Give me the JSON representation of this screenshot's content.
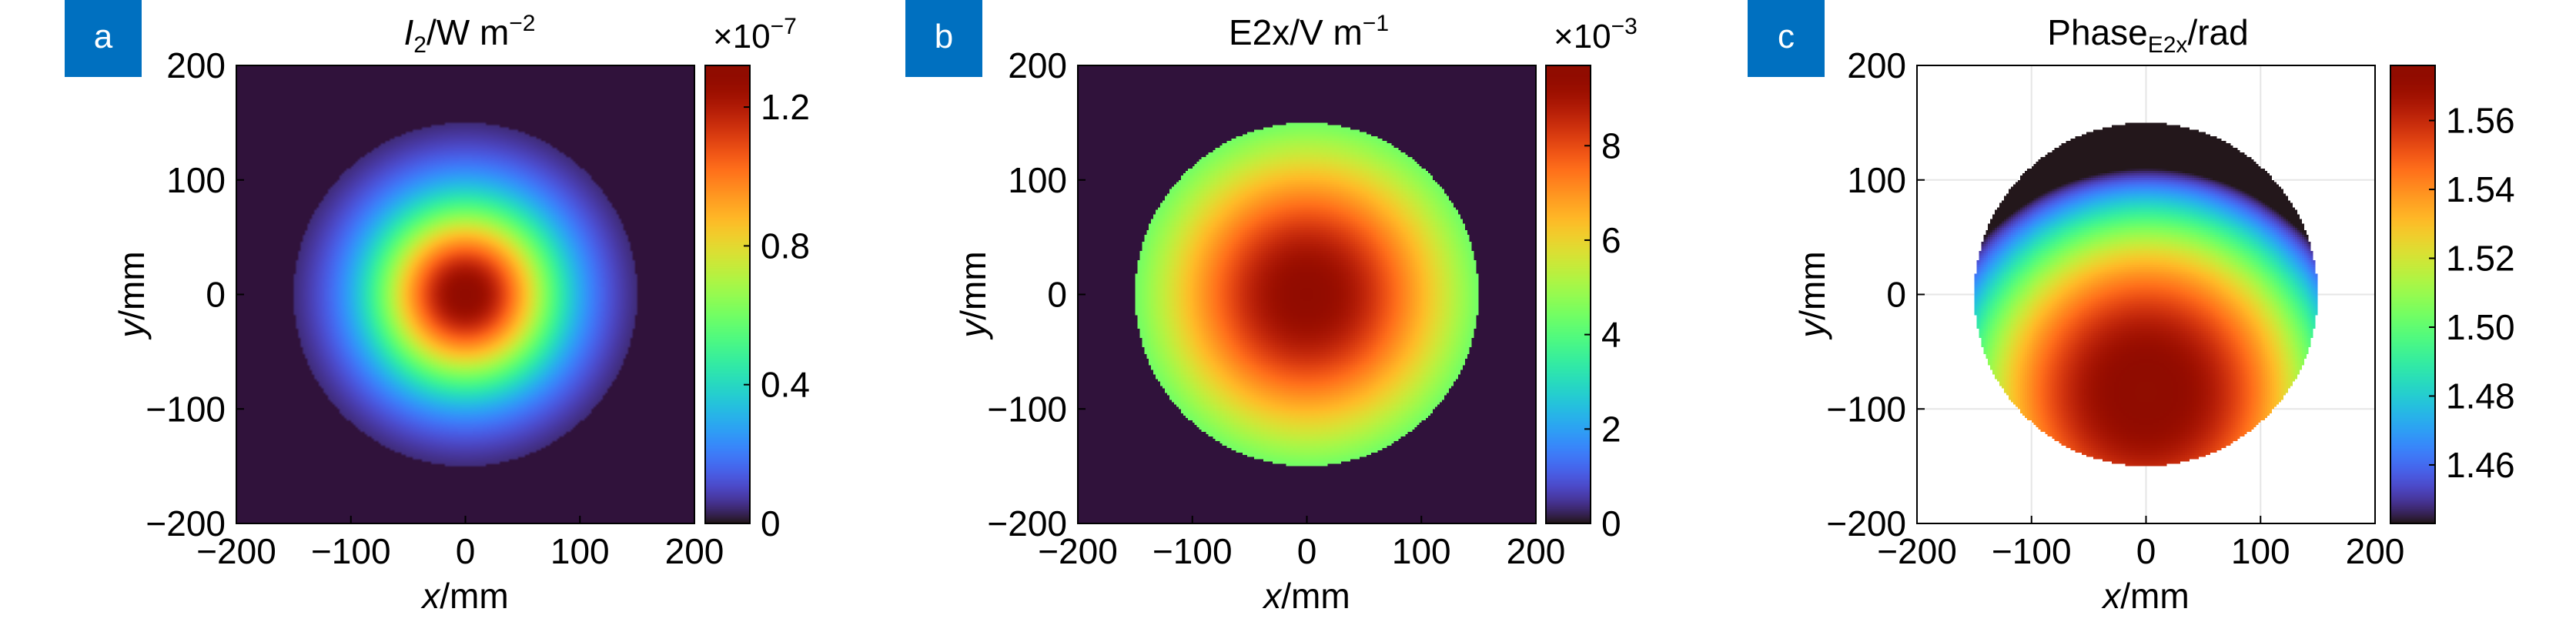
{
  "chart_data": [
    {
      "type": "heatmap",
      "panel_label": "a",
      "title_main": "I",
      "title_sub": "2",
      "title_rest": "/W m",
      "title_sup": "−2",
      "xlabel_italic": "x",
      "xlabel_rest": "/mm",
      "ylabel_italic": "y",
      "ylabel_rest": "/mm",
      "xlim": [
        -200,
        200
      ],
      "ylim": [
        -200,
        200
      ],
      "x_ticks": [
        "−200",
        "−100",
        "0",
        "100",
        "200"
      ],
      "y_ticks": [
        "−200",
        "−100",
        "0",
        "100",
        "200"
      ],
      "field": {
        "pattern": "gaussian",
        "center": [
          0,
          0
        ],
        "sigma": 58,
        "aperture_radius": 150,
        "edge": "smooth"
      },
      "colorbar": {
        "min": 0,
        "max": 1.32,
        "ticks": [
          0,
          0.4,
          0.8,
          1.2
        ],
        "tick_labels": [
          "0",
          "0.4",
          "0.8",
          "1.2"
        ],
        "exponent_base": "×10",
        "exponent_power": "−7"
      },
      "background_color": "#30123b",
      "grid": false
    },
    {
      "type": "heatmap",
      "panel_label": "b",
      "title_main": "E2x/V m",
      "title_sup": "−1",
      "xlabel_italic": "x",
      "xlabel_rest": "/mm",
      "ylabel_italic": "y",
      "ylabel_rest": "/mm",
      "xlim": [
        -200,
        200
      ],
      "ylim": [
        -200,
        200
      ],
      "x_ticks": [
        "−200",
        "−100",
        "0",
        "100",
        "200"
      ],
      "y_ticks": [
        "−200",
        "−100",
        "0",
        "100",
        "200"
      ],
      "field": {
        "pattern": "gaussian",
        "center": [
          0,
          0
        ],
        "sigma": 100,
        "aperture_radius": 150,
        "edge": "pixelated"
      },
      "colorbar": {
        "min": 0,
        "max": 9.7,
        "ticks": [
          0,
          2,
          4,
          6,
          8
        ],
        "tick_labels": [
          "0",
          "2",
          "4",
          "6",
          "8"
        ],
        "exponent_base": "×10",
        "exponent_power": "−3"
      },
      "background_color": "#30123b",
      "grid": false
    },
    {
      "type": "heatmap",
      "panel_label": "c",
      "title_main": "Phase",
      "title_sub": "E2x",
      "title_rest": "/rad",
      "xlabel_italic": "x",
      "xlabel_rest": "/mm",
      "ylabel_italic": "y",
      "ylabel_rest": "/mm",
      "xlim": [
        -200,
        200
      ],
      "ylim": [
        -200,
        200
      ],
      "x_ticks": [
        "−200",
        "−100",
        "0",
        "100",
        "200"
      ],
      "y_ticks": [
        "−200",
        "−100",
        "0",
        "100",
        "200"
      ],
      "field": {
        "pattern": "phase-bowl",
        "center": [
          0,
          -85
        ],
        "scale": 195,
        "min_value": 1.443,
        "max_value": 1.576,
        "aperture_radius": 150,
        "edge": "pixelated"
      },
      "colorbar": {
        "min": 1.443,
        "max": 1.576,
        "ticks": [
          1.46,
          1.48,
          1.5,
          1.52,
          1.54,
          1.56
        ],
        "tick_labels": [
          "1.46",
          "1.48",
          "1.50",
          "1.52",
          "1.54",
          "1.56"
        ]
      },
      "background_color": "#ffffff",
      "grid": true
    }
  ],
  "colors": {
    "badge": "#0070c0",
    "badge_text": "#ffffff",
    "axis": "#000000",
    "grid": "#e6e6e6"
  }
}
